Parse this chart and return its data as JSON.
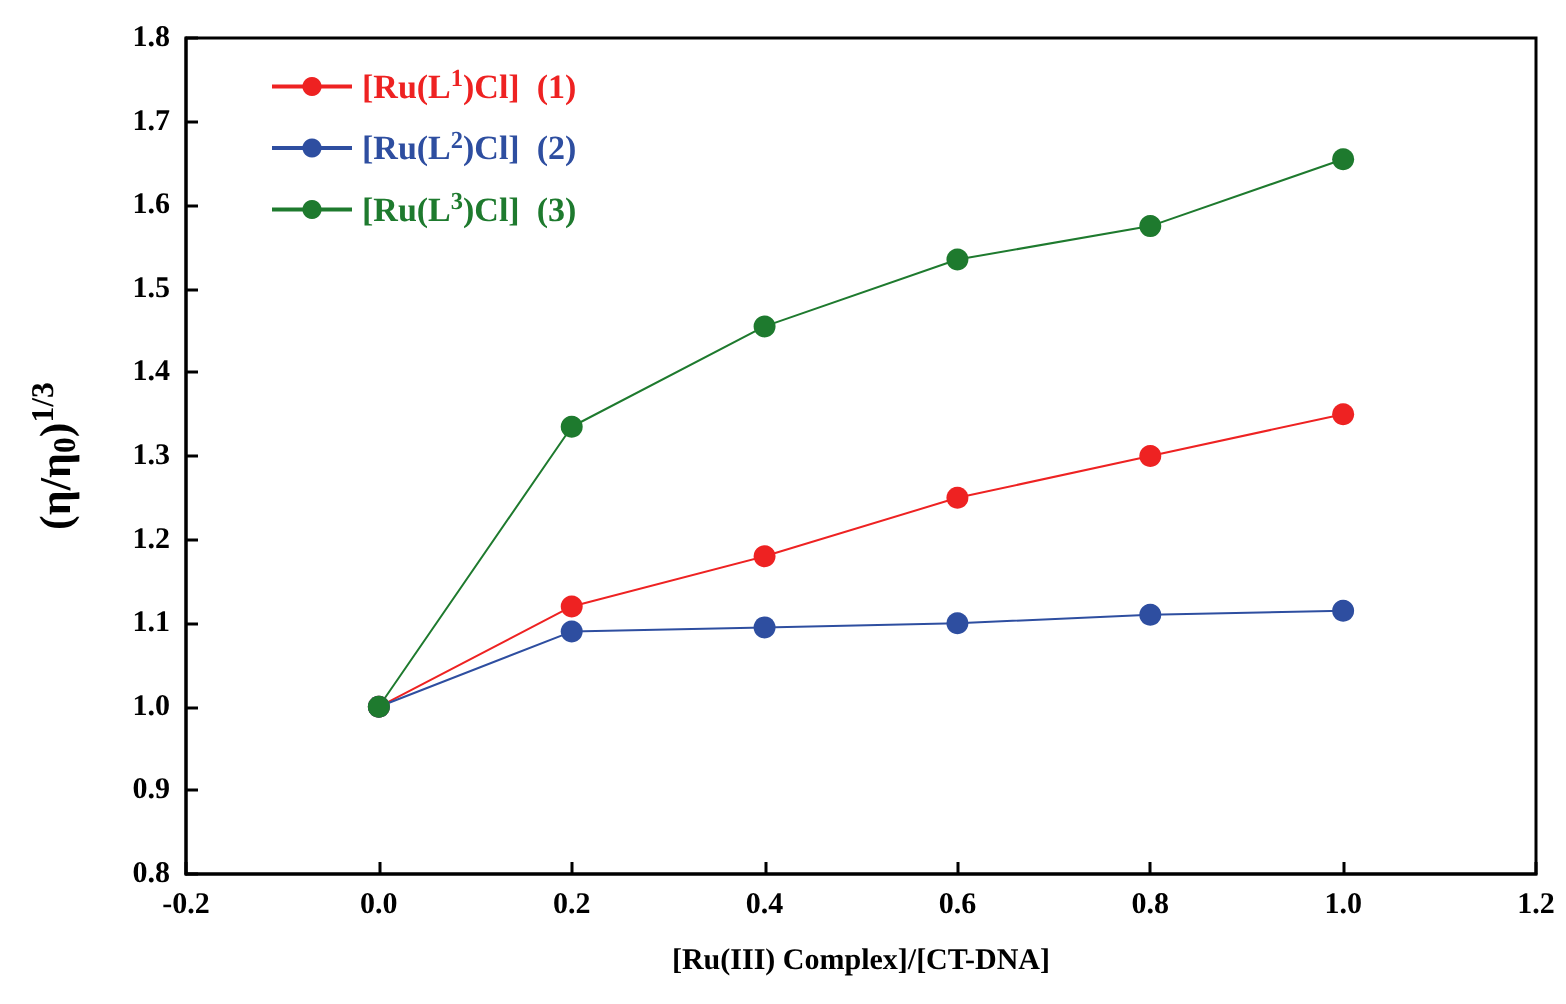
{
  "chart_data": {
    "type": "line",
    "xlabel": "[Ru(III) Complex]/[CT-DNA]",
    "ylabel": "(η/η$_{0}$)$^{1/3}$",
    "x": [
      0,
      0.2,
      0.4,
      0.6,
      0.8,
      1.0
    ],
    "series": [
      {
        "name": "[Ru(L$^{1}$)Cl]  (1)",
        "color": "#ee2222",
        "values": [
          1.0,
          1.12,
          1.18,
          1.25,
          1.3,
          1.35
        ]
      },
      {
        "name": "[Ru(L$^{2}$)Cl]  (2)",
        "color": "#2e4ea0",
        "values": [
          1.0,
          1.09,
          1.095,
          1.1,
          1.11,
          1.115
        ]
      },
      {
        "name": "[Ru(L$^{3}$)Cl]  (3)",
        "color": "#1e7a2e",
        "values": [
          1.0,
          1.335,
          1.455,
          1.535,
          1.575,
          1.655
        ]
      }
    ],
    "xlim": [
      -0.2,
      1.2
    ],
    "xticks": [
      -0.2,
      {
        "value": 0,
        "label": "0.0"
      },
      0.2,
      0.4,
      0.6,
      0.8,
      {
        "value": 1,
        "label": "1.0"
      },
      1.2
    ],
    "ylim": [
      0.8,
      1.8
    ],
    "yticks": [
      0.8,
      0.9,
      {
        "value": 1,
        "label": "1.0"
      },
      1.1,
      1.2,
      1.3,
      1.4,
      1.5,
      1.6,
      1.7,
      1.8
    ],
    "grid": false,
    "legend": "top left",
    "marker": "circle",
    "line_style": "solid"
  }
}
